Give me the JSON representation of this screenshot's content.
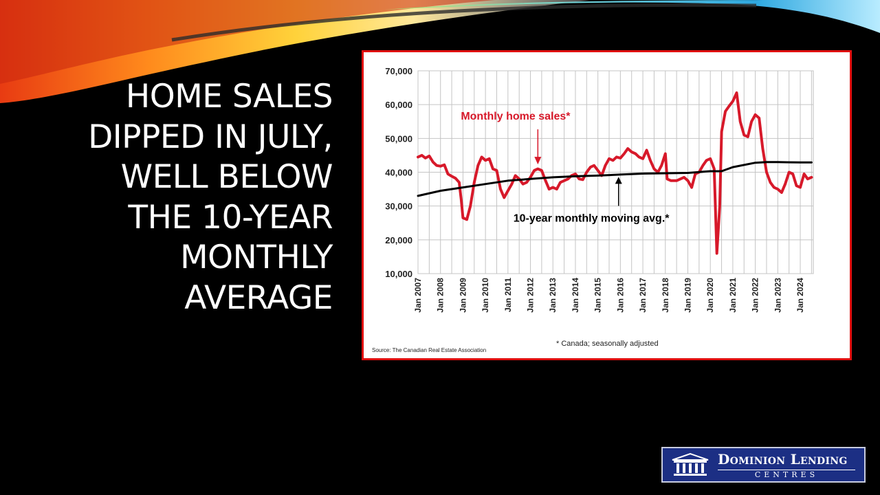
{
  "slide": {
    "title_lines": [
      "HOME SALES",
      "DIPPED IN JULY,",
      "WELL BELOW",
      "THE 10-YEAR",
      "MONTHLY",
      "AVERAGE"
    ]
  },
  "logo": {
    "name": "Dominion Lending",
    "sub": "CENTRES"
  },
  "colors": {
    "background": "#000000",
    "chart_border": "#e01010",
    "sales_line": "#d7192a",
    "avg_line": "#000000",
    "logo_bg": "#1c2f84"
  },
  "chart_data": {
    "type": "line",
    "ylim": [
      10000,
      70000
    ],
    "yticks": [
      10000,
      20000,
      30000,
      40000,
      50000,
      60000,
      70000
    ],
    "ytick_labels": [
      "10,000",
      "20,000",
      "30,000",
      "40,000",
      "50,000",
      "60,000",
      "70,000"
    ],
    "xlim": [
      2007,
      2024.58
    ],
    "xtick_labels": [
      "Jan 2007",
      "Jan 2008",
      "Jan 2009",
      "Jan 2010",
      "Jan 2011",
      "Jan 2012",
      "Jan 2013",
      "Jan 2014",
      "Jan 2015",
      "Jan 2016",
      "Jan 2017",
      "Jan 2018",
      "Jan 2019",
      "Jan 2020",
      "Jan 2021",
      "Jan 2022",
      "Jan 2023",
      "Jan 2024"
    ],
    "grid": true,
    "series": [
      {
        "name": "Monthly home sales*",
        "color": "#d7192a",
        "points": [
          [
            2007.0,
            44500
          ],
          [
            2007.17,
            45000
          ],
          [
            2007.33,
            44200
          ],
          [
            2007.5,
            44800
          ],
          [
            2007.67,
            43000
          ],
          [
            2007.83,
            42000
          ],
          [
            2008.0,
            41800
          ],
          [
            2008.17,
            42200
          ],
          [
            2008.33,
            39500
          ],
          [
            2008.5,
            38800
          ],
          [
            2008.67,
            38200
          ],
          [
            2008.83,
            37000
          ],
          [
            2008.92,
            32000
          ],
          [
            2009.0,
            26500
          ],
          [
            2009.17,
            26000
          ],
          [
            2009.33,
            30000
          ],
          [
            2009.5,
            37000
          ],
          [
            2009.67,
            42000
          ],
          [
            2009.83,
            44500
          ],
          [
            2010.0,
            43500
          ],
          [
            2010.17,
            44000
          ],
          [
            2010.33,
            41000
          ],
          [
            2010.5,
            40500
          ],
          [
            2010.67,
            35000
          ],
          [
            2010.83,
            32500
          ],
          [
            2011.0,
            34500
          ],
          [
            2011.17,
            36500
          ],
          [
            2011.33,
            39000
          ],
          [
            2011.5,
            38000
          ],
          [
            2011.67,
            36500
          ],
          [
            2011.83,
            37000
          ],
          [
            2012.0,
            38500
          ],
          [
            2012.17,
            40500
          ],
          [
            2012.33,
            41000
          ],
          [
            2012.5,
            40500
          ],
          [
            2012.67,
            37500
          ],
          [
            2012.83,
            35000
          ],
          [
            2013.0,
            35500
          ],
          [
            2013.17,
            35000
          ],
          [
            2013.33,
            37000
          ],
          [
            2013.5,
            37500
          ],
          [
            2013.67,
            38000
          ],
          [
            2013.83,
            39000
          ],
          [
            2014.0,
            39500
          ],
          [
            2014.17,
            38000
          ],
          [
            2014.33,
            37800
          ],
          [
            2014.5,
            40000
          ],
          [
            2014.67,
            41500
          ],
          [
            2014.83,
            42000
          ],
          [
            2015.0,
            40500
          ],
          [
            2015.17,
            39000
          ],
          [
            2015.33,
            42000
          ],
          [
            2015.5,
            44000
          ],
          [
            2015.67,
            43500
          ],
          [
            2015.83,
            44500
          ],
          [
            2016.0,
            44200
          ],
          [
            2016.17,
            45500
          ],
          [
            2016.33,
            47000
          ],
          [
            2016.5,
            46000
          ],
          [
            2016.67,
            45500
          ],
          [
            2016.83,
            44500
          ],
          [
            2017.0,
            44000
          ],
          [
            2017.17,
            46500
          ],
          [
            2017.33,
            43500
          ],
          [
            2017.5,
            41000
          ],
          [
            2017.67,
            40000
          ],
          [
            2017.83,
            42000
          ],
          [
            2018.0,
            45500
          ],
          [
            2018.08,
            38000
          ],
          [
            2018.25,
            37500
          ],
          [
            2018.5,
            37500
          ],
          [
            2018.67,
            38000
          ],
          [
            2018.83,
            38500
          ],
          [
            2019.0,
            37500
          ],
          [
            2019.17,
            35500
          ],
          [
            2019.33,
            39500
          ],
          [
            2019.5,
            40000
          ],
          [
            2019.67,
            42000
          ],
          [
            2019.83,
            43500
          ],
          [
            2020.0,
            44000
          ],
          [
            2020.17,
            41000
          ],
          [
            2020.29,
            16000
          ],
          [
            2020.42,
            30000
          ],
          [
            2020.5,
            52000
          ],
          [
            2020.67,
            58000
          ],
          [
            2020.83,
            59500
          ],
          [
            2021.0,
            61000
          ],
          [
            2021.17,
            63500
          ],
          [
            2021.33,
            55000
          ],
          [
            2021.5,
            51000
          ],
          [
            2021.67,
            50500
          ],
          [
            2021.83,
            55000
          ],
          [
            2022.0,
            57000
          ],
          [
            2022.17,
            56000
          ],
          [
            2022.33,
            47000
          ],
          [
            2022.5,
            40000
          ],
          [
            2022.67,
            37000
          ],
          [
            2022.83,
            35500
          ],
          [
            2023.0,
            35000
          ],
          [
            2023.17,
            34000
          ],
          [
            2023.33,
            36500
          ],
          [
            2023.5,
            40000
          ],
          [
            2023.67,
            39500
          ],
          [
            2023.83,
            36000
          ],
          [
            2024.0,
            35500
          ],
          [
            2024.17,
            39500
          ],
          [
            2024.33,
            38000
          ],
          [
            2024.5,
            38500
          ]
        ]
      },
      {
        "name": "10-year monthly moving avg.*",
        "color": "#000000",
        "points": [
          [
            2007.0,
            33000
          ],
          [
            2008.0,
            34500
          ],
          [
            2009.0,
            35500
          ],
          [
            2010.0,
            36500
          ],
          [
            2011.0,
            37500
          ],
          [
            2012.0,
            38000
          ],
          [
            2013.0,
            38500
          ],
          [
            2014.0,
            38800
          ],
          [
            2015.0,
            39000
          ],
          [
            2016.0,
            39300
          ],
          [
            2017.0,
            39600
          ],
          [
            2018.0,
            39700
          ],
          [
            2019.0,
            39800
          ],
          [
            2020.0,
            40300
          ],
          [
            2020.5,
            40300
          ],
          [
            2021.0,
            41500
          ],
          [
            2022.0,
            42800
          ],
          [
            2022.5,
            43000
          ],
          [
            2023.0,
            43000
          ],
          [
            2024.0,
            42900
          ],
          [
            2024.5,
            42900
          ]
        ]
      }
    ],
    "annotations": [
      {
        "text": "Monthly home sales*",
        "x": 2012.33,
        "y": 41500,
        "color": "#d7192a",
        "arrow": "down"
      },
      {
        "text": "10-year monthly moving avg.*",
        "x": 2015.92,
        "y": 39200,
        "color": "#000000",
        "arrow": "up"
      }
    ],
    "footnote": "* Canada; seasonally adjusted",
    "source": "Source: The Canadian Real Estate Association"
  }
}
